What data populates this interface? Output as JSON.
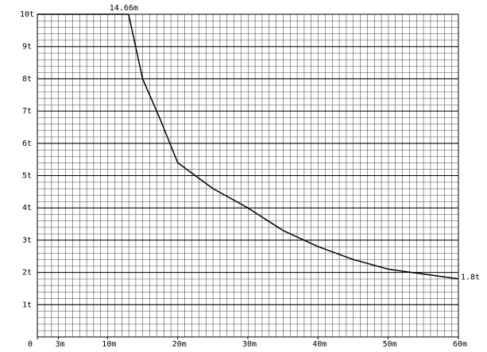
{
  "chart_data": {
    "type": "line",
    "x": [
      0,
      13,
      15,
      17.5,
      20,
      25,
      30,
      35,
      40,
      45,
      50,
      55,
      60
    ],
    "values": [
      10,
      10,
      8,
      6.75,
      5.4,
      4.6,
      4.0,
      3.3,
      2.8,
      2.4,
      2.1,
      1.95,
      1.8
    ],
    "color": "#000000",
    "xlim": [
      0,
      60
    ],
    "xticks": [
      0,
      {
        "value": 3,
        "label": "3m"
      },
      {
        "value": 10,
        "label": "10m"
      },
      {
        "value": 20,
        "label": "20m"
      },
      {
        "value": 30,
        "label": "30m"
      },
      {
        "value": 40,
        "label": "40m"
      },
      {
        "value": 50,
        "label": "50m"
      },
      {
        "value": 60,
        "label": "60m"
      }
    ],
    "ylim": [
      0,
      10
    ],
    "yticks": [
      {
        "value": 1,
        "label": "1t"
      },
      {
        "value": 2,
        "label": "2t"
      },
      {
        "value": 3,
        "label": "3t"
      },
      {
        "value": 4,
        "label": "4t"
      },
      {
        "value": 5,
        "label": "5t"
      },
      {
        "value": 6,
        "label": "6t"
      },
      {
        "value": 7,
        "label": "7t"
      },
      {
        "value": 8,
        "label": "8t"
      },
      {
        "value": 9,
        "label": "9t"
      },
      {
        "value": 10,
        "label": "10t"
      }
    ],
    "annotations": [
      "14.66m",
      "1.8t"
    ],
    "grid": true
  }
}
